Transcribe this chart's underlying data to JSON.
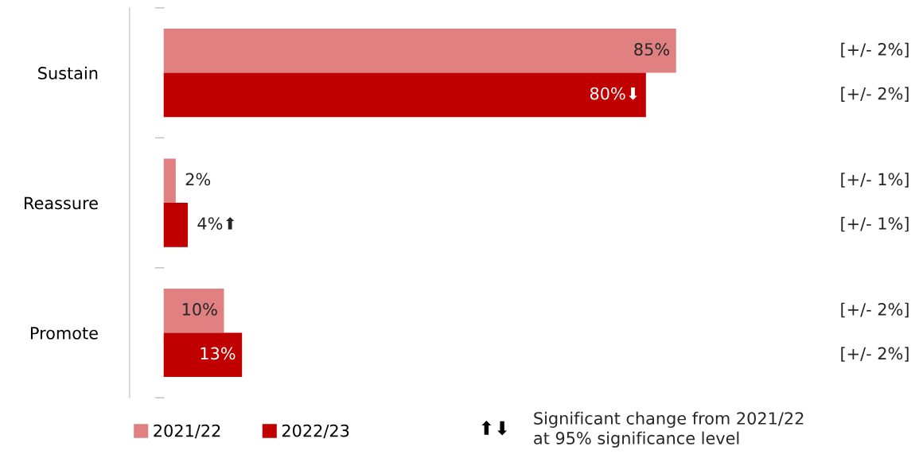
{
  "chart_data": {
    "type": "bar",
    "orientation": "horizontal",
    "categories": [
      "Sustain",
      "Reassure",
      "Promote"
    ],
    "series": [
      {
        "name": "2021/22",
        "color": "#e08080",
        "values": [
          85,
          2,
          10
        ],
        "value_labels": [
          "85%",
          "2%",
          "10%"
        ]
      },
      {
        "name": "2022/23",
        "color": "#c00000",
        "values": [
          80,
          4,
          13
        ],
        "value_labels": [
          "80%⬇",
          "4%⬆",
          "13%"
        ]
      }
    ],
    "tick_labels": "y",
    "grid": false,
    "legend": "bottom left",
    "annotations": [
      "[+/- 2%]",
      "[+/- 2%]",
      "[+/- 1%]",
      "[+/- 1%]",
      "[+/- 2%]",
      "[+/- 2%]",
      "⬆⬇",
      "Significant change from 2021/22\nat 95% significance level"
    ]
  }
}
